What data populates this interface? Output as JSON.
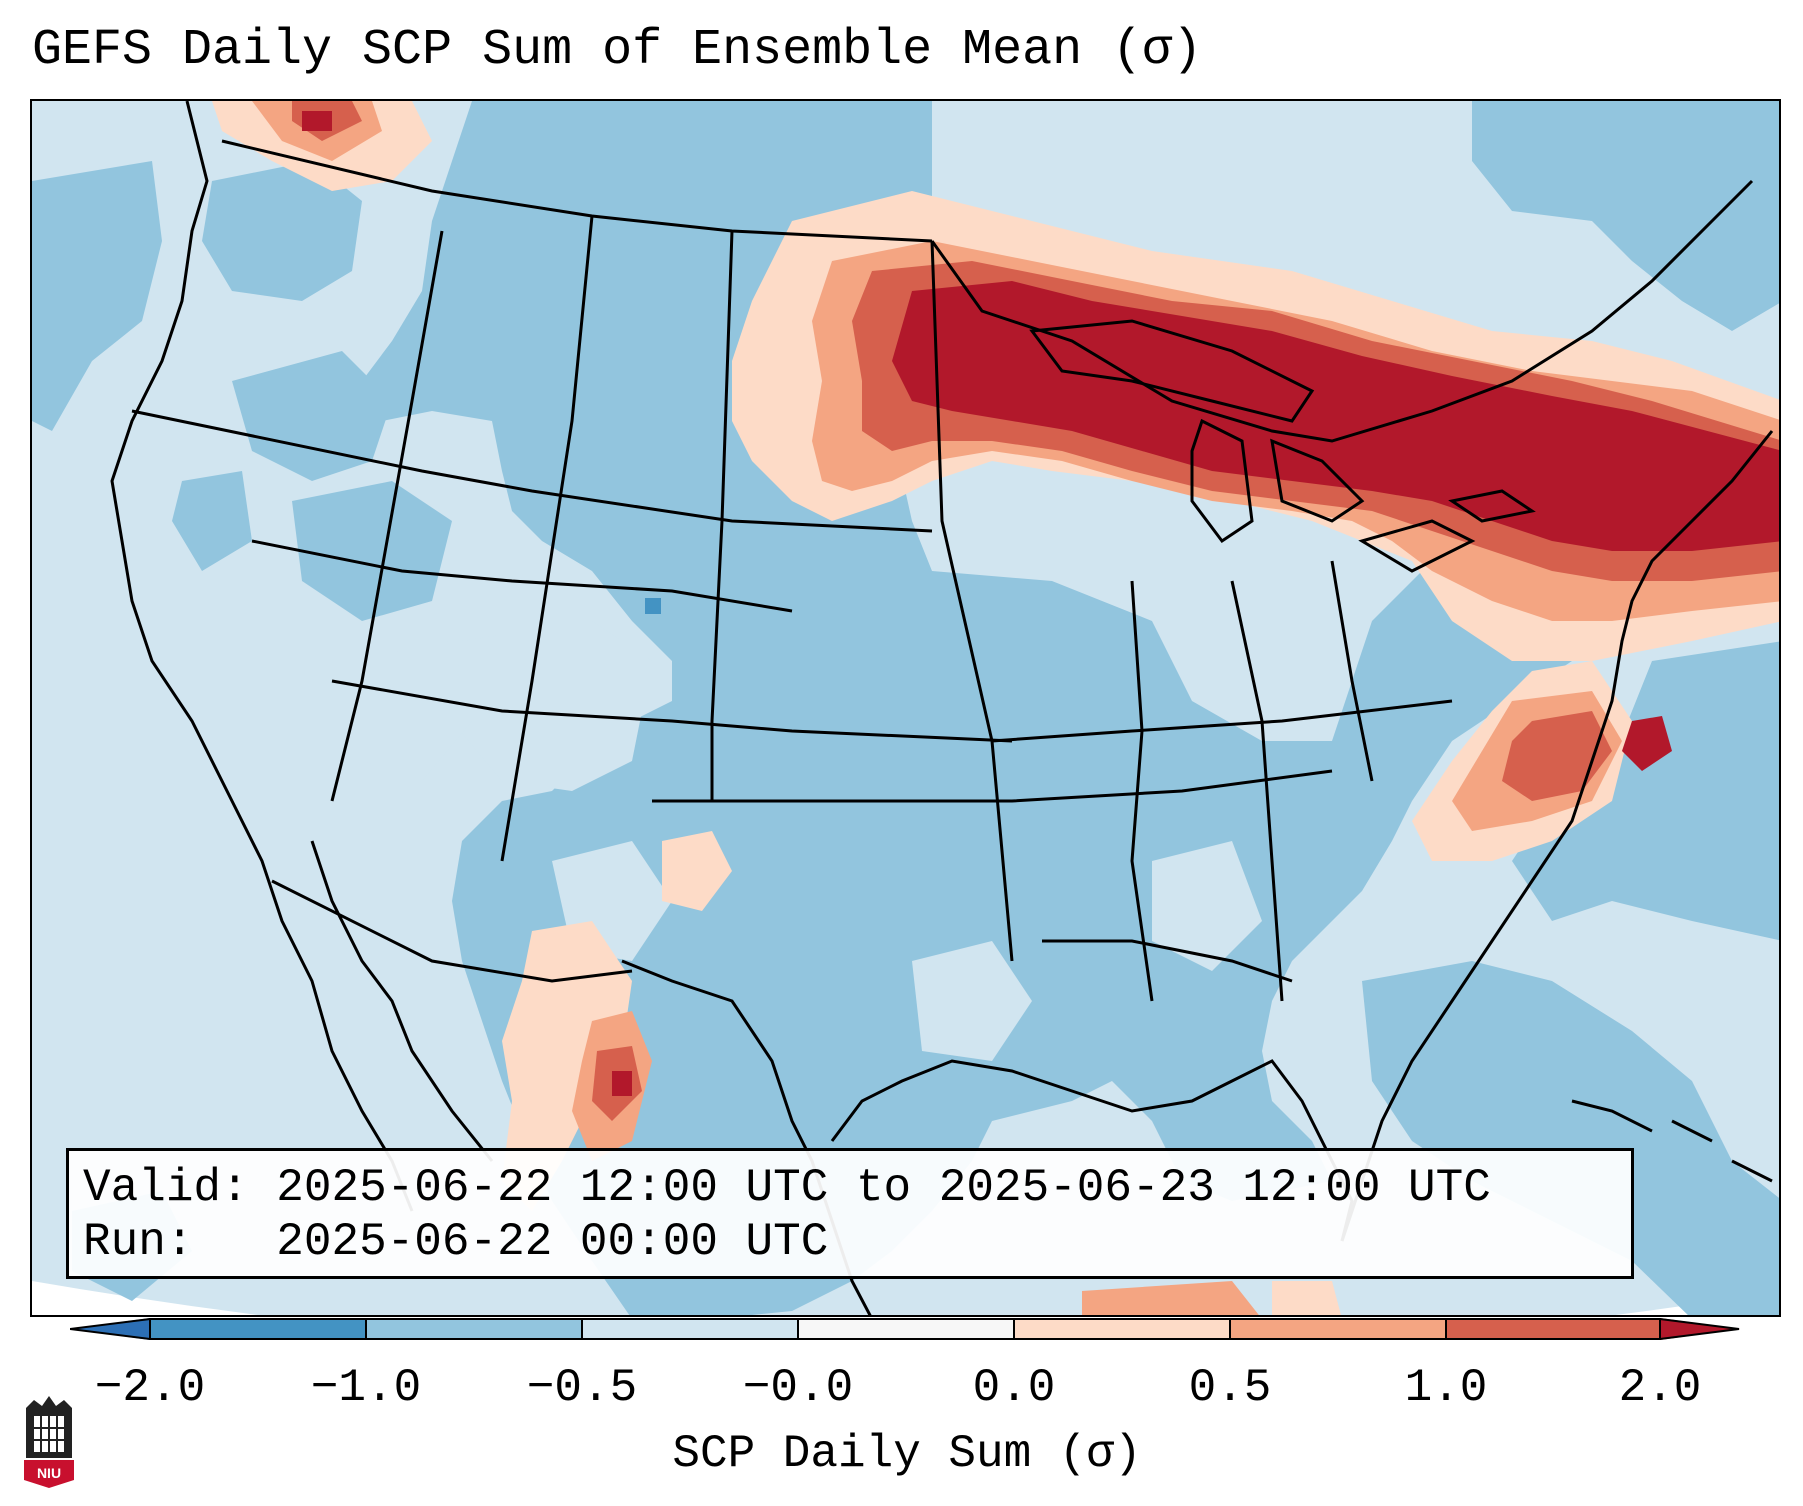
{
  "title": "GEFS Daily SCP Sum of Ensemble Mean (σ)",
  "info": {
    "valid_label": "Valid:",
    "valid_value": "2025-06-22 12:00 UTC to 2025-06-23 12:00 UTC",
    "run_label": "Run:",
    "run_value": "2025-06-22 00:00 UTC"
  },
  "colorbar": {
    "label": "SCP Daily Sum (σ)",
    "ticks": [
      "−2.0",
      "−1.0",
      "−0.5",
      "−0.0",
      "0.0",
      "0.5",
      "1.0",
      "2.0"
    ],
    "colors": {
      "below_min": "#2c6fb5",
      "bin_m2_m1": "#4393c3",
      "bin_m1_m05": "#92c5de",
      "bin_m05_m00": "#d1e5f0",
      "bin_m00_00": "#f7f7f7",
      "bin_00_05": "#fddbc7",
      "bin_05_10": "#f4a582",
      "bin_10_20": "#d6604d",
      "above_max": "#b2182b"
    }
  },
  "logo": {
    "text": "NIU"
  }
}
